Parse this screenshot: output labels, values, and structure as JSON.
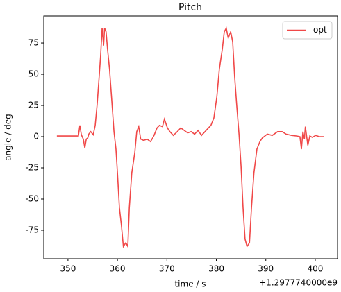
{
  "chart_data": {
    "type": "line",
    "title": "Pitch",
    "xlabel": "time / s",
    "ylabel": "angle / deg",
    "x_offset_label": "+1.2977740000e9",
    "x": [
      347.75,
      351.7,
      352.1,
      352.4,
      352.7,
      353.1,
      353.4,
      353.7,
      354.0,
      354.2,
      354.6,
      355.1,
      355.5,
      355.9,
      356.3,
      356.6,
      356.9,
      357.2,
      357.4,
      357.7,
      358.0,
      358.4,
      358.8,
      359.3,
      359.7,
      360.0,
      360.4,
      360.8,
      361.2,
      361.7,
      362.1,
      362.4,
      362.9,
      363.5,
      363.9,
      364.3,
      364.7,
      365.3,
      366.0,
      366.7,
      367.4,
      368.0,
      368.5,
      369.1,
      369.5,
      370.1,
      370.6,
      371.3,
      372.1,
      372.8,
      373.5,
      374.2,
      374.9,
      375.6,
      376.3,
      377.0,
      377.7,
      378.4,
      378.9,
      379.5,
      380.1,
      380.6,
      381.2,
      381.6,
      382.0,
      382.4,
      382.9,
      383.3,
      383.7,
      384.1,
      384.6,
      385.0,
      385.4,
      385.8,
      386.2,
      386.7,
      387.1,
      387.6,
      388.2,
      388.8,
      389.3,
      390.3,
      391.3,
      392.4,
      393.3,
      394.1,
      395.2,
      396.3,
      396.9,
      397.2,
      397.5,
      397.8,
      398.0,
      398.5,
      398.9,
      399.4,
      400.1,
      400.8,
      401.7
    ],
    "series": [
      {
        "name": "opt",
        "color": "#f04848",
        "values": [
          0.5,
          0.5,
          0.5,
          9,
          1.5,
          -2,
          -9,
          -2,
          -1,
          2,
          4,
          1.5,
          9,
          26,
          48,
          65,
          87,
          73,
          87,
          84,
          70,
          54,
          32,
          4,
          -10,
          -29,
          -57,
          -71,
          -88,
          -85,
          -88,
          -57,
          -29,
          -13,
          4,
          8,
          -2,
          -3,
          -2,
          -4,
          1,
          7,
          9,
          8,
          14,
          7,
          4,
          1,
          4,
          7,
          5,
          3,
          4,
          2,
          5,
          1,
          4,
          7,
          9,
          15,
          32,
          54,
          70,
          84,
          87,
          79,
          84,
          76,
          48,
          26,
          1,
          -24,
          -57,
          -82,
          -88,
          -85,
          -57,
          -29,
          -10,
          -4,
          -1,
          2,
          1,
          4,
          4,
          2,
          1,
          0.5,
          0,
          -10,
          4,
          -2,
          8,
          -7,
          0.5,
          -0.5,
          1,
          0,
          0
        ]
      }
    ],
    "xlim": [
      345.1,
      404.5
    ],
    "ylim": [
      -97.8,
      96.7
    ],
    "xticks": [
      350,
      360,
      370,
      380,
      390,
      400
    ],
    "yticks": [
      -75,
      -50,
      -25,
      0,
      25,
      50,
      75
    ],
    "legend": "upper right",
    "grid": false
  }
}
